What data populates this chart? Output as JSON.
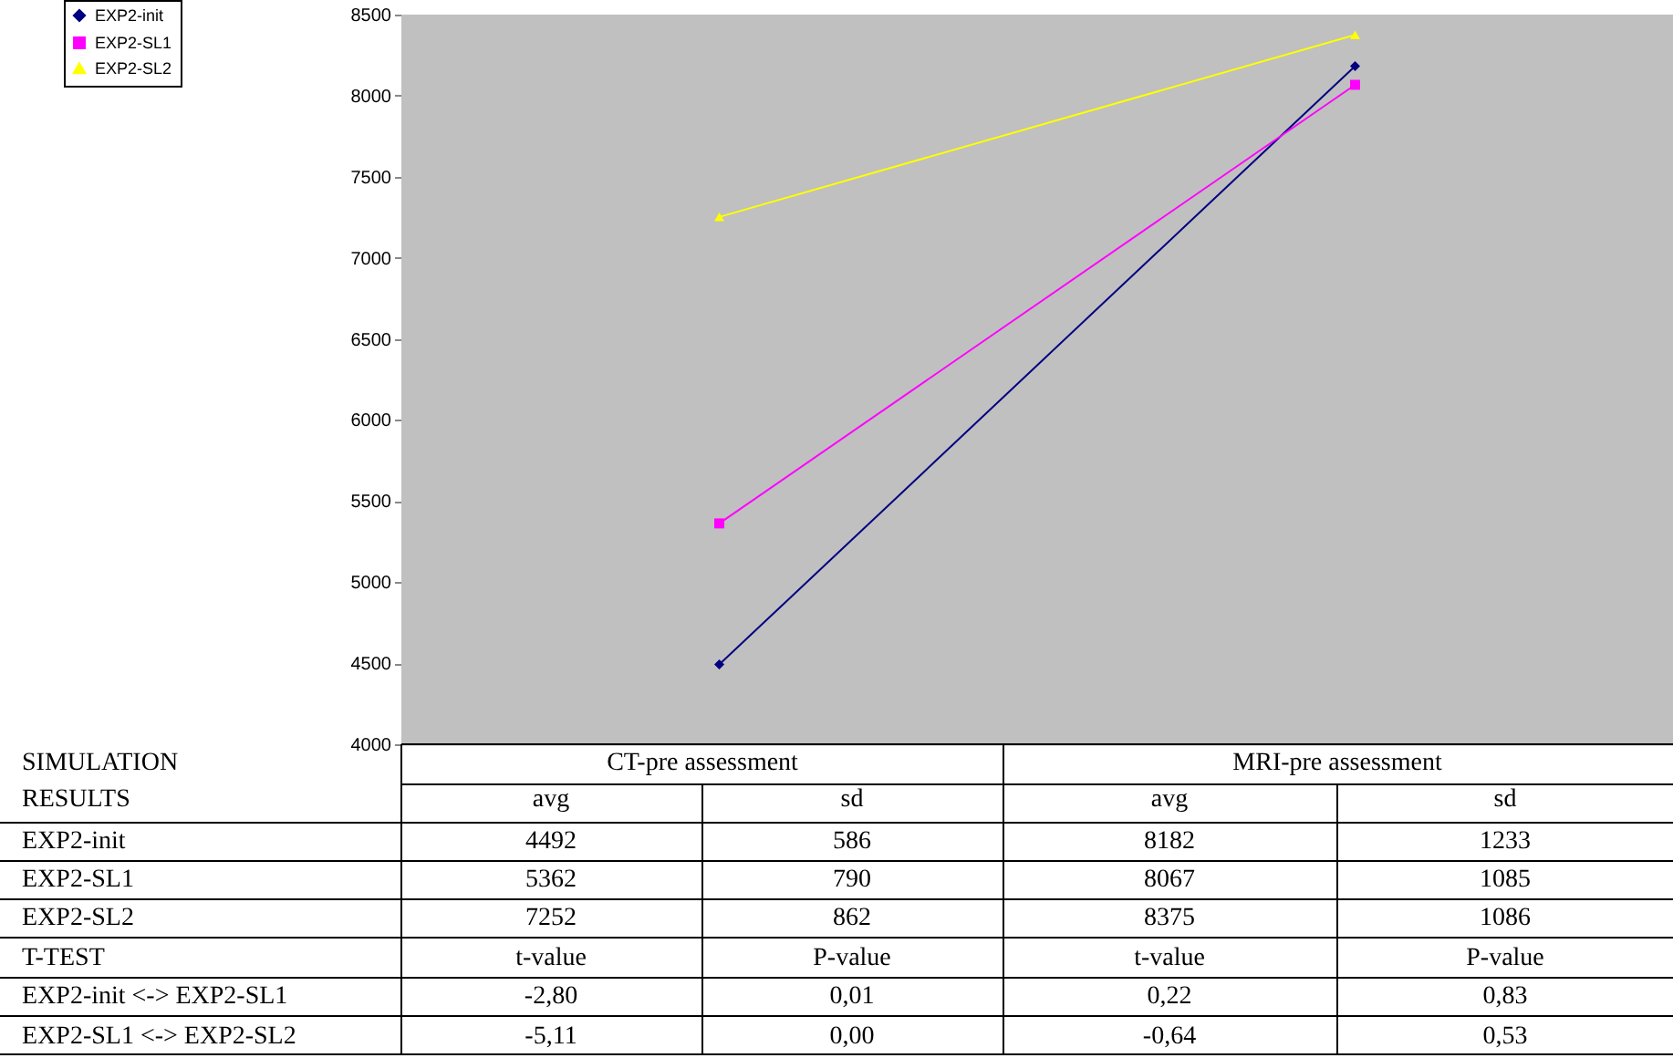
{
  "chart_data": {
    "type": "line",
    "categories": [
      "CT-pre assessment",
      "MRI-pre assessment"
    ],
    "series": [
      {
        "name": "EXP2-init",
        "color": "#000080",
        "marker": "diamond",
        "values": [
          4492,
          8182
        ]
      },
      {
        "name": "EXP2-SL1",
        "color": "#ff00ff",
        "marker": "square",
        "values": [
          5362,
          8067
        ]
      },
      {
        "name": "EXP2-SL2",
        "color": "#ffff00",
        "marker": "triangle",
        "values": [
          7252,
          8375
        ]
      }
    ],
    "ylim": [
      4000,
      8500
    ],
    "yticks": [
      4000,
      4500,
      5000,
      5500,
      6000,
      6500,
      7000,
      7500,
      8000,
      8500
    ],
    "tick_labels": "y",
    "legend": "top left",
    "data_labels": true,
    "annotations": [
      "SIMULATION RESULTS",
      "avg",
      "sd",
      "avg",
      "sd",
      "586",
      "1233",
      "790",
      "1085",
      "862",
      "1086",
      "T-TEST",
      "t-value",
      "P-value",
      "t-value",
      "P-value",
      "EXP2-init <-> EXP2-SL1",
      "-2,80",
      "0,01",
      "0,22",
      "0,83",
      "EXP2-SL1 <-> EXP2-SL2",
      "-5,11",
      "0,00",
      "-0,64",
      "0,53"
    ]
  }
}
